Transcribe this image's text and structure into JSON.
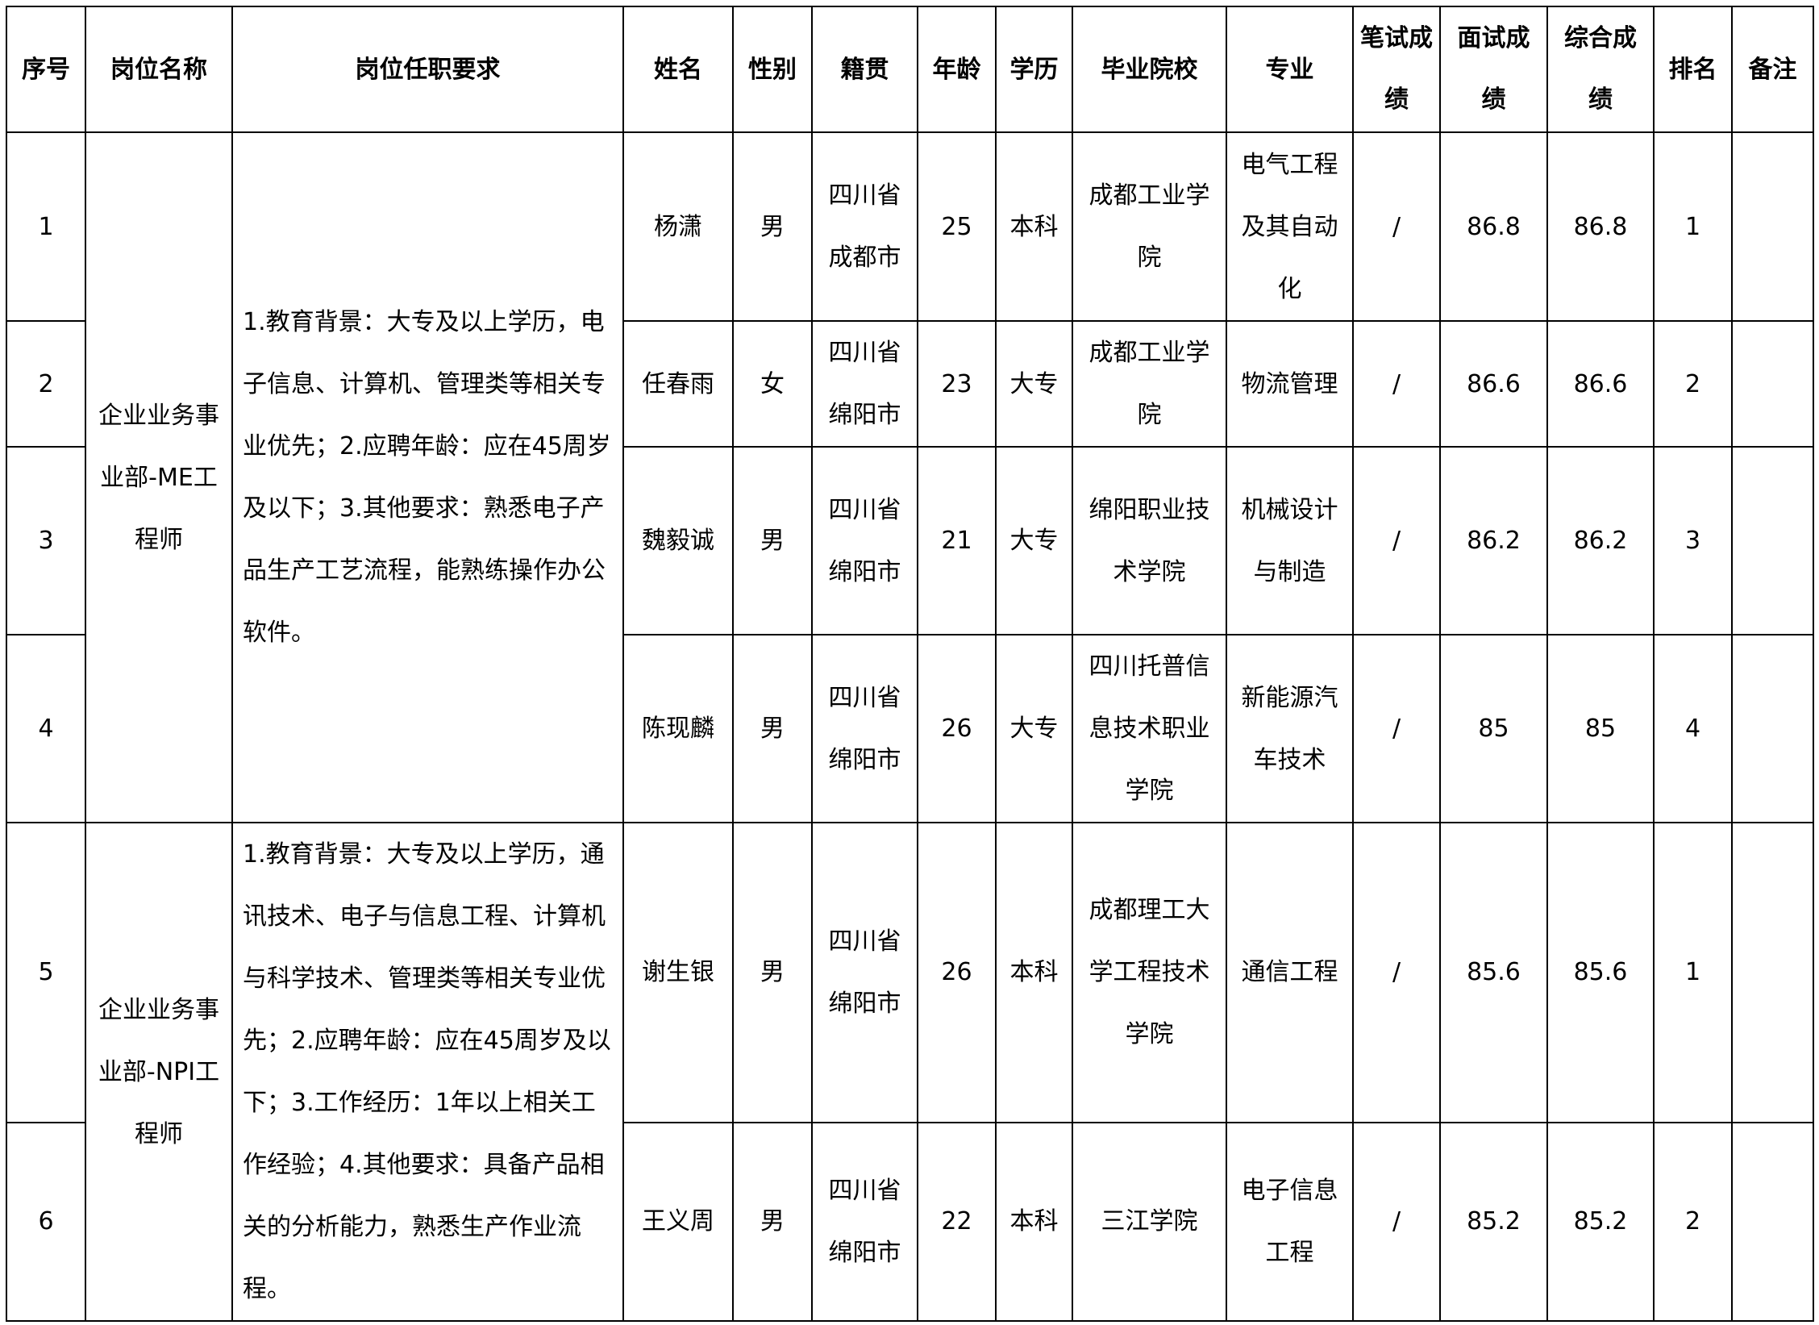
{
  "headers": [
    "序号",
    "岗位名称",
    "岗位任职要求",
    "姓名",
    "性别",
    "籍贯",
    "年龄",
    "学历",
    "毕业院校",
    "专业",
    "笔试成绩",
    "面试成绩",
    "综合成绩",
    "排名",
    "备注"
  ],
  "groups": [
    {
      "position": "企业业务事业部-ME工程师",
      "requirements": "1.教育背景：大专及以上学历，电子信息、计算机、管理类等相关专业优先；2.应聘年龄：应在45周岁及以下；3.其他要求：熟悉电子产品生产工艺流程，能熟练操作办公软件。"
    },
    {
      "position": "企业业务事业部-NPI工程师",
      "requirements": "1.教育背景：大专及以上学历，通讯技术、电子与信息工程、计算机与科学技术、管理类等相关专业优先；2.应聘年龄：应在45周岁及以下；3.工作经历：1年以上相关工作经验；4.其他要求：具备产品相关的分析能力，熟悉生产作业流程。"
    }
  ],
  "rows": [
    {
      "no": "1",
      "name": "杨潇",
      "gender": "男",
      "origin": "四川省成都市",
      "age": "25",
      "edu": "本科",
      "school": "成都工业学院",
      "major": "电气工程及其自动化",
      "written": "/",
      "interview": "86.8",
      "total": "86.8",
      "rank": "1",
      "note": ""
    },
    {
      "no": "2",
      "name": "任春雨",
      "gender": "女",
      "origin": "四川省绵阳市",
      "age": "23",
      "edu": "大专",
      "school": "成都工业学院",
      "major": "物流管理",
      "written": "/",
      "interview": "86.6",
      "total": "86.6",
      "rank": "2",
      "note": ""
    },
    {
      "no": "3",
      "name": "魏毅诚",
      "gender": "男",
      "origin": "四川省绵阳市",
      "age": "21",
      "edu": "大专",
      "school": "绵阳职业技术学院",
      "major": "机械设计与制造",
      "written": "/",
      "interview": "86.2",
      "total": "86.2",
      "rank": "3",
      "note": ""
    },
    {
      "no": "4",
      "name": "陈现麟",
      "gender": "男",
      "origin": "四川省绵阳市",
      "age": "26",
      "edu": "大专",
      "school": "四川托普信息技术职业学院",
      "major": "新能源汽车技术",
      "written": "/",
      "interview": "85",
      "total": "85",
      "rank": "4",
      "note": ""
    },
    {
      "no": "5",
      "name": "谢生银",
      "gender": "男",
      "origin": "四川省绵阳市",
      "age": "26",
      "edu": "本科",
      "school": "成都理工大学工程技术学院",
      "major": "通信工程",
      "written": "/",
      "interview": "85.6",
      "total": "85.6",
      "rank": "1",
      "note": ""
    },
    {
      "no": "6",
      "name": "王义周",
      "gender": "男",
      "origin": "四川省绵阳市",
      "age": "22",
      "edu": "本科",
      "school": "三江学院",
      "major": "电子信息工程",
      "written": "/",
      "interview": "85.2",
      "total": "85.2",
      "rank": "2",
      "note": ""
    }
  ]
}
